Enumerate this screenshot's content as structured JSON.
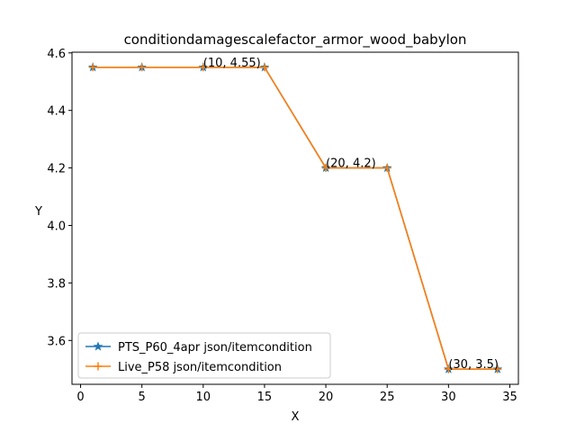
{
  "chart_data": {
    "type": "line",
    "title": "conditiondamagescalefactor_armor_wood_babylon",
    "xlabel": "X",
    "ylabel": "Y",
    "xlim": [
      -0.7,
      35.7
    ],
    "ylim": [
      3.4475,
      4.6025
    ],
    "xticks": [
      0,
      5,
      10,
      15,
      20,
      25,
      30,
      35
    ],
    "yticks": [
      3.6,
      3.8,
      4.0,
      4.2,
      4.4,
      4.6
    ],
    "ytick_labels": [
      "3.6",
      "3.8",
      "4.0",
      "4.2",
      "4.4",
      "4.6"
    ],
    "grid": false,
    "legend_position": "lower-left",
    "series": [
      {
        "name": "PTS_P60_4apr json/itemcondition",
        "color": "#1f77b4",
        "marker": "star",
        "x": [
          1,
          5,
          10,
          15,
          20,
          25,
          30,
          34
        ],
        "y": [
          4.55,
          4.55,
          4.55,
          4.55,
          4.2,
          4.2,
          3.5,
          3.5
        ]
      },
      {
        "name": "Live_P58 json/itemcondition",
        "color": "#ff7f0e",
        "marker": "plus",
        "x": [
          1,
          5,
          10,
          15,
          20,
          25,
          30,
          34
        ],
        "y": [
          4.55,
          4.55,
          4.55,
          4.55,
          4.2,
          4.2,
          3.5,
          3.5
        ]
      }
    ],
    "annotations": [
      {
        "text": "(10, 4.55)",
        "x": 10,
        "y": 4.55
      },
      {
        "text": "(20, 4.2)",
        "x": 20,
        "y": 4.2
      },
      {
        "text": "(30, 3.5)",
        "x": 30,
        "y": 3.5
      }
    ]
  }
}
